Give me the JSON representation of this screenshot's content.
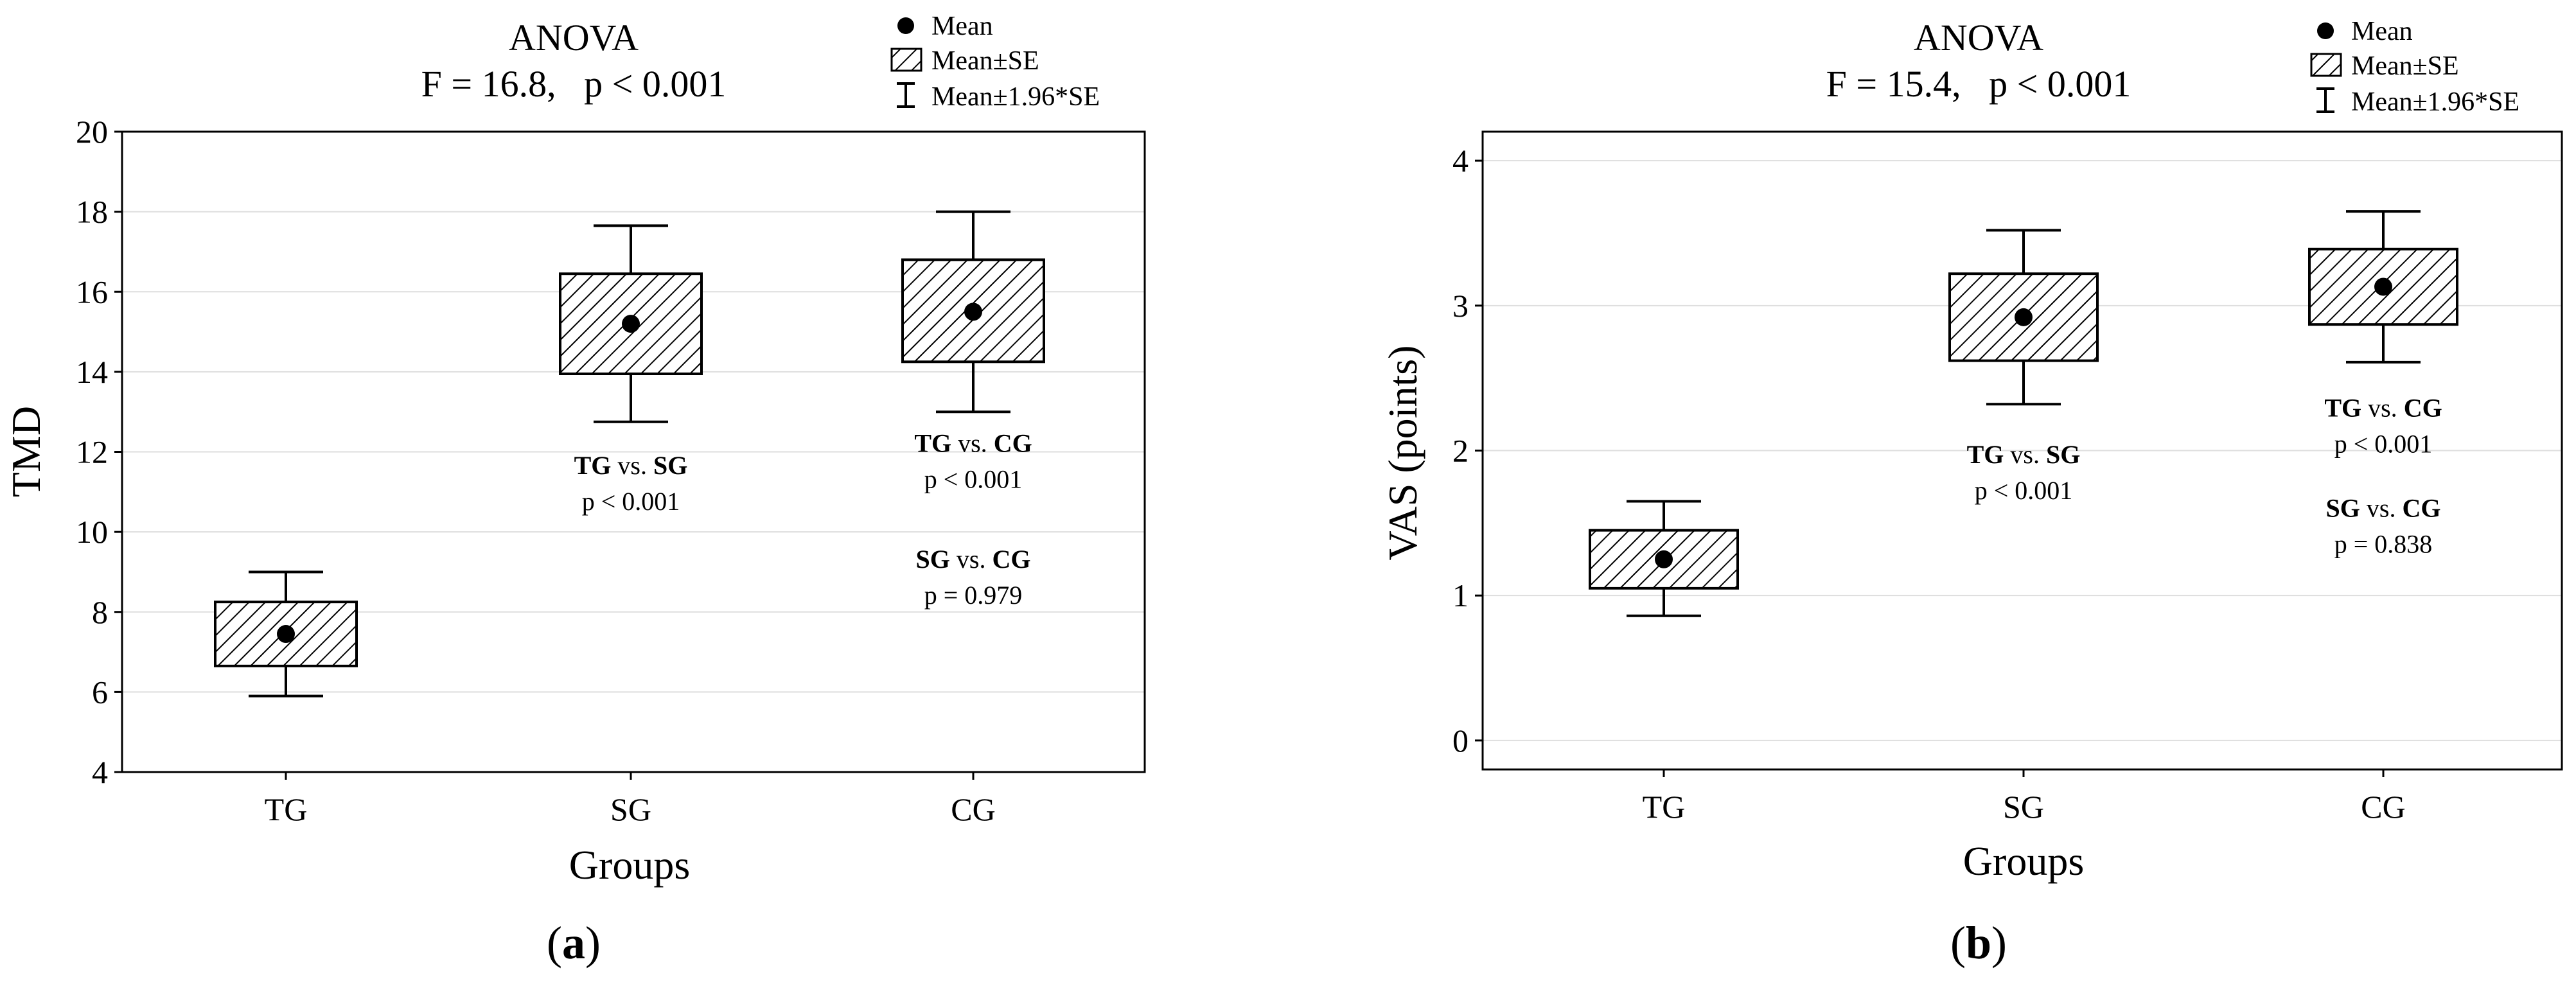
{
  "chart_data": [
    {
      "type": "box",
      "panel_label": "a",
      "title": "ANOVA",
      "subtitle": "F = 16.8,   p < 0.001",
      "xlabel": "Groups",
      "ylabel": "TMD",
      "ylim": [
        4,
        20
      ],
      "yticks": [
        4,
        6,
        8,
        10,
        12,
        14,
        16,
        18,
        20
      ],
      "categories": [
        "TG",
        "SG",
        "CG"
      ],
      "series": [
        {
          "name": "Mean",
          "values": [
            7.45,
            15.2,
            15.5
          ],
          "se_low": [
            6.65,
            13.95,
            14.25
          ],
          "se_high": [
            8.25,
            16.45,
            16.8
          ],
          "ci_low": [
            5.9,
            12.75,
            13.0
          ],
          "ci_high": [
            9.0,
            17.65,
            18.0
          ]
        }
      ],
      "legend": {
        "position": "top-right",
        "entries": [
          "Mean",
          "Mean±SE",
          "Mean±1.96*SE"
        ]
      },
      "annotations": [
        {
          "category": "SG",
          "y": 11.0,
          "g1": "TG",
          "g2": "SG",
          "p": "p < 0.001"
        },
        {
          "category": "CG",
          "y": 11.55,
          "g1": "TG",
          "g2": "CG",
          "p": "p < 0.001"
        },
        {
          "category": "CG",
          "y": 8.65,
          "g1": "SG",
          "g2": "CG",
          "p": "p = 0.979"
        }
      ],
      "vs": "vs.",
      "grid": true
    },
    {
      "type": "box",
      "panel_label": "b",
      "title": "ANOVA",
      "subtitle": "F = 15.4,   p < 0.001",
      "xlabel": "Groups",
      "ylabel": "VAS (points)",
      "ylim": [
        -0.2,
        4.2
      ],
      "yticks": [
        0,
        1,
        2,
        3,
        4
      ],
      "categories": [
        "TG",
        "SG",
        "CG"
      ],
      "series": [
        {
          "name": "Mean",
          "values": [
            1.25,
            2.92,
            3.13
          ],
          "se_low": [
            1.05,
            2.62,
            2.87
          ],
          "se_high": [
            1.45,
            3.22,
            3.39
          ],
          "ci_low": [
            0.86,
            2.32,
            2.61
          ],
          "ci_high": [
            1.65,
            3.52,
            3.65
          ]
        }
      ],
      "legend": {
        "position": "top-right",
        "entries": [
          "Mean",
          "Mean±SE",
          "Mean±1.96*SE"
        ]
      },
      "annotations": [
        {
          "category": "SG",
          "y": 1.79,
          "g1": "TG",
          "g2": "SG",
          "p": "p < 0.001"
        },
        {
          "category": "CG",
          "y": 2.11,
          "g1": "TG",
          "g2": "CG",
          "p": "p < 0.001"
        },
        {
          "category": "CG",
          "y": 1.42,
          "g1": "SG",
          "g2": "CG",
          "p": "p = 0.838"
        }
      ],
      "vs": "vs.",
      "grid": true
    }
  ],
  "colors": {
    "axis": "#000000",
    "grid": "#dedede",
    "mean": "#000000",
    "box_stroke": "#000000",
    "hatch": "#000000"
  }
}
